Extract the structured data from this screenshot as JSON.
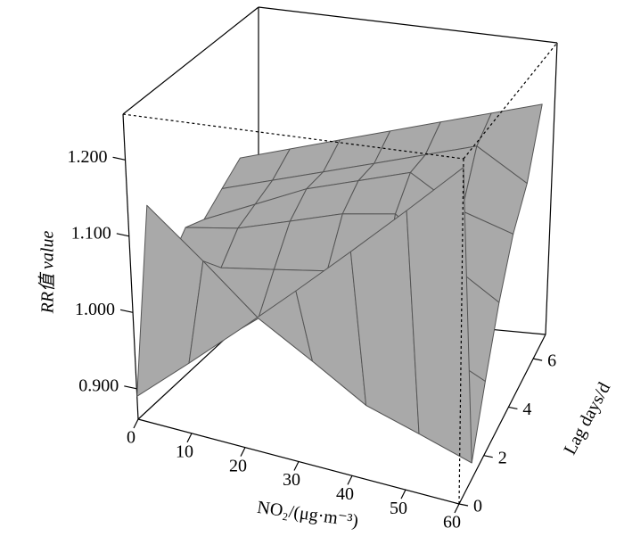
{
  "chart_data": {
    "type": "surface",
    "xlabel": "NO₂/(μg·m⁻³)",
    "ylabel": "Lag days/d",
    "zlabel": "RR值 value",
    "x": [
      0,
      10,
      20,
      30,
      40,
      50,
      60
    ],
    "y": [
      0,
      1,
      2,
      3,
      4,
      5,
      6
    ],
    "z": [
      [
        0.89,
        0.95,
        1.01,
        1.07,
        1.13,
        1.19,
        1.25
      ],
      [
        1.12,
        1.06,
        1.0,
        0.96,
        0.92,
        0.9,
        0.88
      ],
      [
        1.02,
        1.03,
        1.04,
        1.05,
        1.02,
        0.98,
        0.95
      ],
      [
        1.05,
        1.06,
        1.08,
        1.1,
        1.11,
        1.06,
        1.02
      ],
      [
        1.04,
        1.07,
        1.1,
        1.12,
        1.14,
        1.1,
        1.08
      ],
      [
        1.06,
        1.08,
        1.1,
        1.12,
        1.14,
        1.16,
        1.12
      ],
      [
        1.08,
        1.1,
        1.12,
        1.14,
        1.16,
        1.18,
        1.2
      ]
    ],
    "xlim": [
      0,
      60
    ],
    "ylim": [
      0,
      7
    ],
    "zlim": [
      0.86,
      1.26
    ],
    "xticks": [
      0,
      10,
      20,
      30,
      40,
      50,
      60
    ],
    "yticks": [
      0,
      2,
      4,
      6
    ],
    "zticks": [
      {
        "value": 0.9,
        "label": "0.900"
      },
      {
        "value": 1.0,
        "label": "1.000"
      },
      {
        "value": 1.1,
        "label": "1.100"
      },
      {
        "value": 1.2,
        "label": "1.200"
      }
    ],
    "color": "#a9a9a9"
  }
}
